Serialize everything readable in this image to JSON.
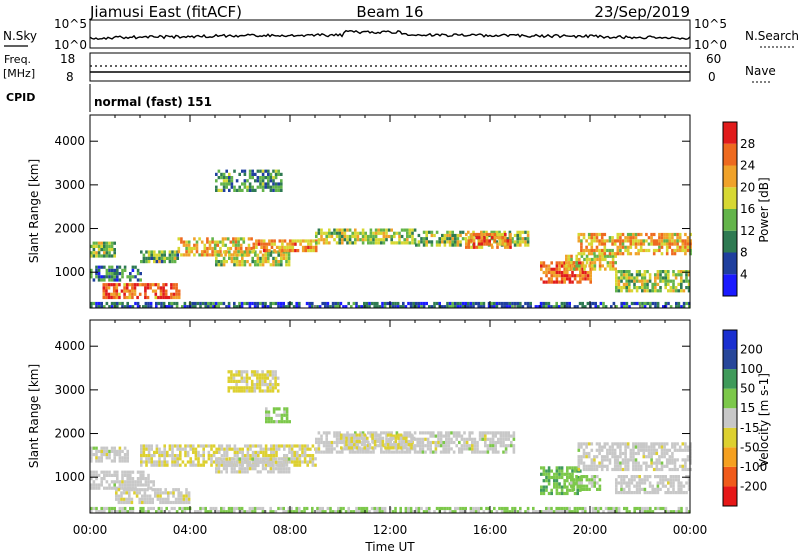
{
  "header": {
    "station": "Jiamusi East (fitACF)",
    "beam": "Beam 16",
    "date": "23/Sep/2019"
  },
  "sky_panel": {
    "left_label": "N.Sky",
    "right_label": "N.Search",
    "left_ticks": [
      "10^5",
      "10^0"
    ],
    "right_ticks": [
      "10^5",
      "10^0"
    ]
  },
  "freq_panel": {
    "left_label_line1": "Freq.",
    "left_label_line2": "[MHz]",
    "right_label": "Nave",
    "left_ticks": [
      "18",
      "8"
    ],
    "right_ticks": [
      "60",
      "0"
    ]
  },
  "cpid": {
    "label": "CPID",
    "value": "normal (fast) 151"
  },
  "x_axis": {
    "label": "Time UT",
    "ticks": [
      "00:00",
      "04:00",
      "08:00",
      "12:00",
      "16:00",
      "20:00",
      "00:00"
    ]
  },
  "colors": {
    "power": [
      "#1a1aff",
      "#1f3f9e",
      "#2e7a52",
      "#63b44a",
      "#d7d833",
      "#f0a22a",
      "#ee6a1f",
      "#e11b1b"
    ],
    "velocity": [
      "#e61717",
      "#f05a1a",
      "#f5a020",
      "#ddd030",
      "#c8c8c8",
      "#7cc84a",
      "#3f9a5a",
      "#28479a",
      "#1a2fd0"
    ]
  },
  "chart_data": [
    {
      "type": "heatmap",
      "title": "",
      "xlabel": "",
      "ylabel": "Slant Range [km]",
      "xlim": [
        0,
        24
      ],
      "ylim": [
        180,
        4600
      ],
      "y_ticks": [
        "1000",
        "2000",
        "3000",
        "4000"
      ],
      "colorbar": {
        "label": "Power [dB]",
        "ticks": [
          "4",
          "8",
          "12",
          "16",
          "20",
          "24",
          "28"
        ],
        "range": [
          0,
          30
        ]
      },
      "regions": [
        {
          "t0": 0.0,
          "t1": 1.0,
          "r0": 1400,
          "r1": 1700,
          "value": 14
        },
        {
          "t0": 0.0,
          "t1": 2.0,
          "r0": 850,
          "r1": 1150,
          "value": 9
        },
        {
          "t0": 0.5,
          "t1": 3.6,
          "r0": 450,
          "r1": 750,
          "value": 24
        },
        {
          "t0": 2.0,
          "t1": 3.5,
          "r0": 1250,
          "r1": 1500,
          "value": 13
        },
        {
          "t0": 3.5,
          "t1": 6.5,
          "r0": 1400,
          "r1": 1800,
          "value": 19
        },
        {
          "t0": 5.0,
          "t1": 8.0,
          "r0": 1150,
          "r1": 1500,
          "value": 16
        },
        {
          "t0": 6.5,
          "t1": 9.0,
          "r0": 1500,
          "r1": 1750,
          "value": 21
        },
        {
          "t0": 5.0,
          "t1": 7.7,
          "r0": 2900,
          "r1": 3350,
          "value": 10
        },
        {
          "t0": 9.0,
          "t1": 13.0,
          "r0": 1650,
          "r1": 2000,
          "value": 15
        },
        {
          "t0": 13.0,
          "t1": 17.5,
          "r0": 1650,
          "r1": 1950,
          "value": 14
        },
        {
          "t0": 15.0,
          "t1": 16.8,
          "r0": 1600,
          "r1": 1900,
          "value": 22
        },
        {
          "t0": 18.0,
          "t1": 20.0,
          "r0": 750,
          "r1": 1250,
          "value": 25
        },
        {
          "t0": 19.0,
          "t1": 21.0,
          "r0": 1050,
          "r1": 1400,
          "value": 18
        },
        {
          "t0": 19.5,
          "t1": 24.0,
          "r0": 1450,
          "r1": 1900,
          "value": 20
        },
        {
          "t0": 21.0,
          "t1": 24.0,
          "r0": 600,
          "r1": 1050,
          "value": 15
        },
        {
          "t0": 0.0,
          "t1": 24.0,
          "r0": 180,
          "r1": 320,
          "value": 7
        }
      ]
    },
    {
      "type": "heatmap",
      "title": "",
      "xlabel": "Time UT",
      "ylabel": "Slant Range [km]",
      "xlim": [
        0,
        24
      ],
      "ylim": [
        180,
        4600
      ],
      "y_ticks": [
        "1000",
        "2000",
        "3000",
        "4000"
      ],
      "colorbar": {
        "label": "Velocity [m s-1]",
        "ticks": [
          "200",
          "100",
          "50",
          "15",
          "-15",
          "-50",
          "-100",
          "-200"
        ],
        "range": [
          -250,
          250
        ]
      },
      "regions": [
        {
          "t0": 0.0,
          "t1": 1.5,
          "r0": 1350,
          "r1": 1700,
          "value": 0
        },
        {
          "t0": 0.0,
          "t1": 2.5,
          "r0": 750,
          "r1": 1150,
          "value": 0
        },
        {
          "t0": 1.0,
          "t1": 4.0,
          "r0": 450,
          "r1": 750,
          "value": -10
        },
        {
          "t0": 2.0,
          "t1": 9.0,
          "r0": 1300,
          "r1": 1750,
          "value": -30
        },
        {
          "t0": 5.0,
          "t1": 8.0,
          "r0": 1150,
          "r1": 1450,
          "value": 0
        },
        {
          "t0": 5.5,
          "t1": 7.5,
          "r0": 2950,
          "r1": 3450,
          "value": -40
        },
        {
          "t0": 7.0,
          "t1": 8.0,
          "r0": 2300,
          "r1": 2600,
          "value": 40
        },
        {
          "t0": 9.0,
          "t1": 17.0,
          "r0": 1600,
          "r1": 2050,
          "value": 0
        },
        {
          "t0": 10.0,
          "t1": 13.0,
          "r0": 1700,
          "r1": 2000,
          "value": -25
        },
        {
          "t0": 18.0,
          "t1": 19.6,
          "r0": 650,
          "r1": 1250,
          "value": 75
        },
        {
          "t0": 19.2,
          "t1": 20.4,
          "r0": 700,
          "r1": 1050,
          "value": 40
        },
        {
          "t0": 19.5,
          "t1": 24.0,
          "r0": 1200,
          "r1": 1800,
          "value": 0
        },
        {
          "t0": 21.0,
          "t1": 24.0,
          "r0": 650,
          "r1": 1050,
          "value": 0
        },
        {
          "t0": 0.0,
          "t1": 24.0,
          "r0": 180,
          "r1": 320,
          "value": 30
        }
      ]
    }
  ]
}
